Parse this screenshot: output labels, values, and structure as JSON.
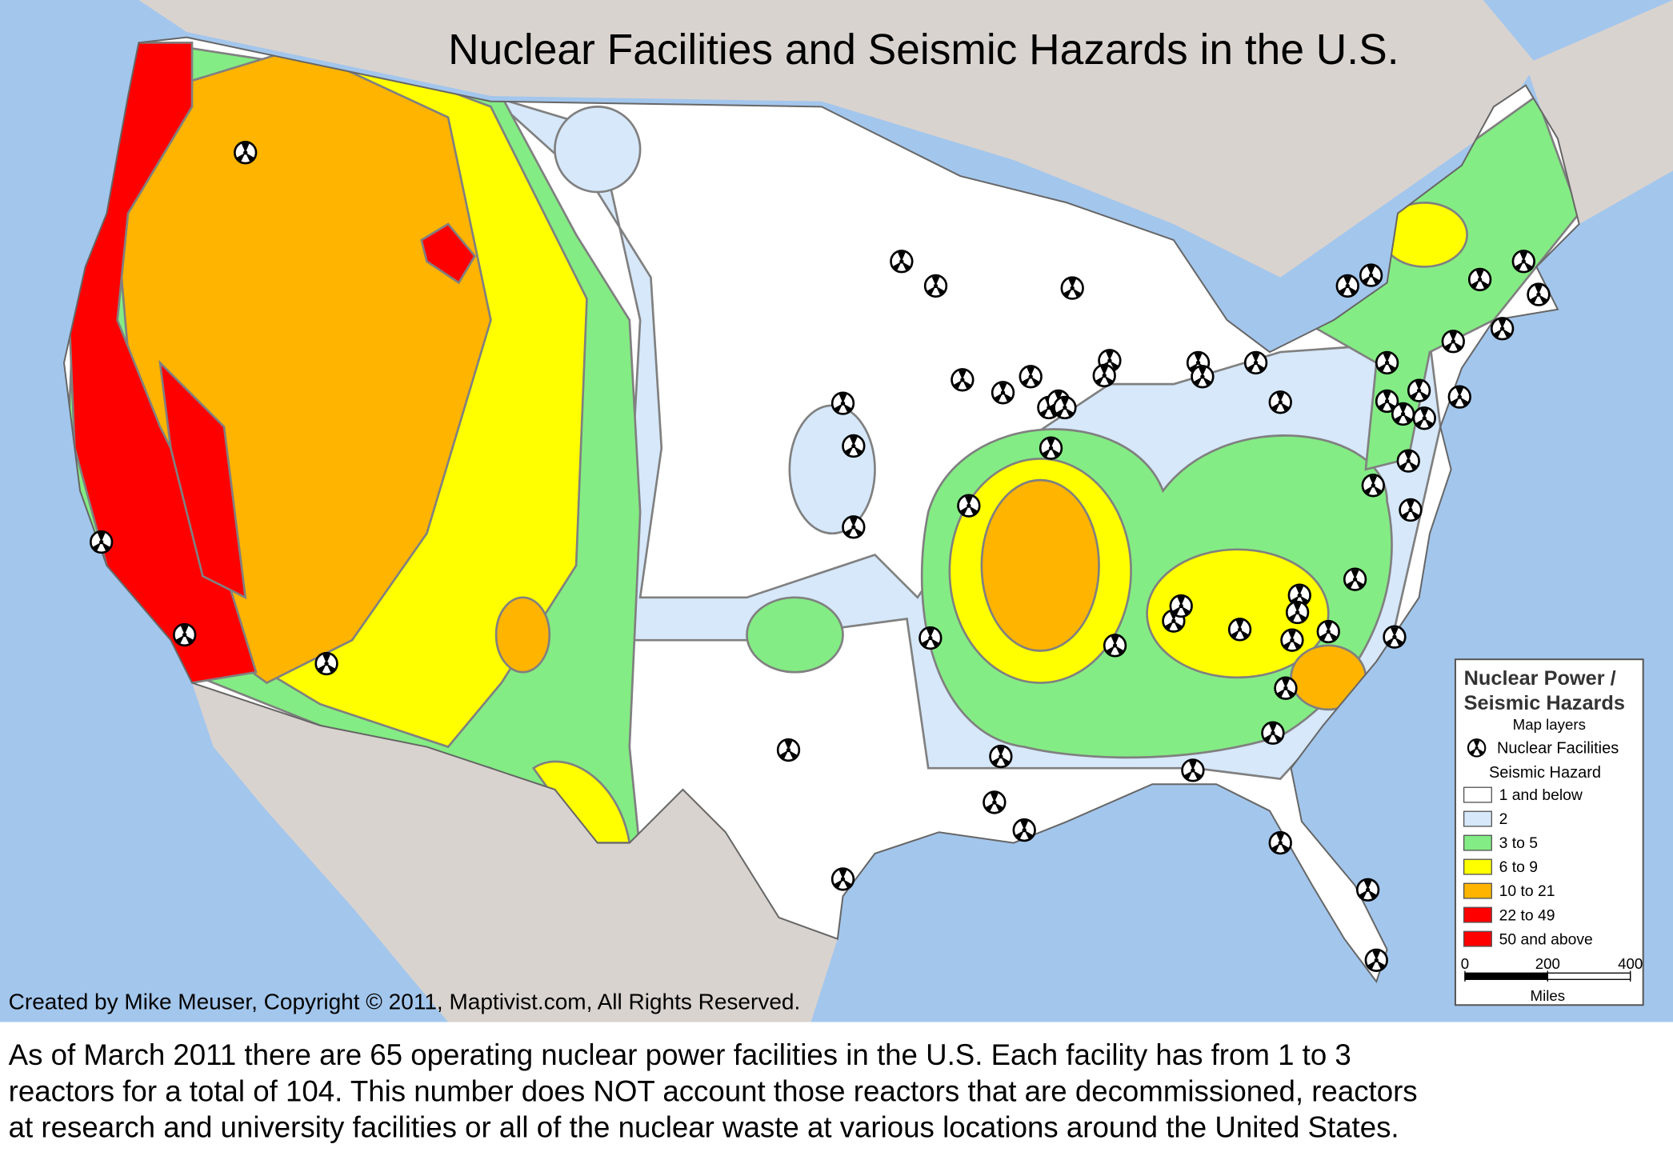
{
  "title": "Nuclear Facilities and Seismic Hazards in the U.S.",
  "credit": "Created by Mike Meuser, Copyright © 2011, Maptivist.com, All Rights Reserved.",
  "legend": {
    "title": [
      "Nuclear Power /",
      "Seismic Hazards"
    ],
    "subtitle": "Map layers",
    "facilities": "Nuclear Facilities",
    "hazard_title": "Seismic Hazard",
    "items": [
      {
        "label": "1 and below",
        "color": "#ffffff"
      },
      {
        "label": "2",
        "color": "#d6e8fa"
      },
      {
        "label": "3 to 5",
        "color": "#84ec84"
      },
      {
        "label": "6 to 9",
        "color": "#ffff00"
      },
      {
        "label": "10 to 21",
        "color": "#ffb400"
      },
      {
        "label": "22 to 49",
        "color": "#ff0000"
      },
      {
        "label": "50 and above",
        "color": "#ff0000"
      }
    ]
  },
  "scale": {
    "ticks": [
      0,
      200,
      400
    ],
    "unit": "Miles"
  },
  "caption": [
    "As of March 2011 there are 65 operating nuclear power facilities in the U.S. Each facility has from 1 to 3",
    "reactors for a total of 104. This number does NOT account those reactors that are decommissioned, reactors",
    "at research and university facilities or all of the nuclear waste at various locations around the United States."
  ]
}
